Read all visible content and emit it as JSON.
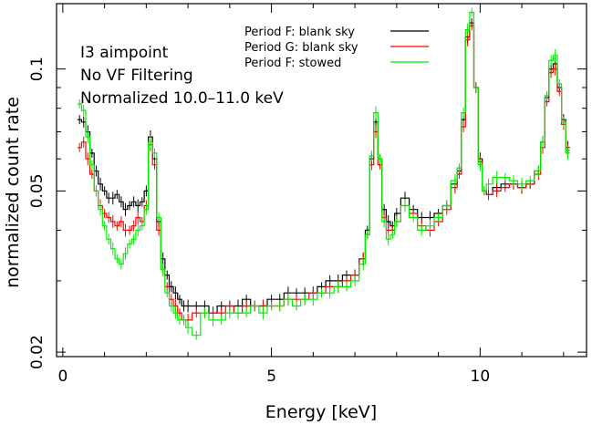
{
  "chart_data": {
    "type": "line",
    "xlabel": "Energy [keV]",
    "ylabel": "normalized count rate",
    "xlim": [
      -0.15,
      12.55
    ],
    "ylim": [
      0.0195,
      0.145
    ],
    "y_scale": "log",
    "x_ticks": [
      {
        "v": 0,
        "label": "0"
      },
      {
        "v": 5,
        "label": "5"
      },
      {
        "v": 10,
        "label": "10"
      }
    ],
    "y_ticks": [
      {
        "v": 0.02,
        "label": "0.02"
      },
      {
        "v": 0.05,
        "label": "0.05"
      },
      {
        "v": 0.1,
        "label": "0.1"
      }
    ],
    "annotations": [
      "I3 aimpoint",
      "No VF Filtering",
      "Normalized 10.0–11.0 keV"
    ],
    "legend_position": "top-center",
    "series": [
      {
        "name": "Period F: blank sky",
        "color": "#000000",
        "x": [
          0.4,
          0.5,
          0.6,
          0.7,
          0.8,
          0.9,
          1.0,
          1.1,
          1.2,
          1.3,
          1.4,
          1.5,
          1.6,
          1.7,
          1.8,
          1.9,
          2.0,
          2.1,
          2.2,
          2.3,
          2.4,
          2.5,
          2.6,
          2.7,
          2.8,
          2.9,
          3.0,
          3.2,
          3.4,
          3.6,
          3.8,
          4.0,
          4.2,
          4.4,
          4.6,
          4.8,
          5.0,
          5.2,
          5.4,
          5.6,
          5.8,
          6.0,
          6.2,
          6.4,
          6.6,
          6.8,
          7.0,
          7.2,
          7.3,
          7.4,
          7.5,
          7.6,
          7.7,
          7.8,
          7.9,
          8.0,
          8.2,
          8.4,
          8.6,
          8.8,
          9.0,
          9.2,
          9.4,
          9.5,
          9.6,
          9.7,
          9.8,
          9.9,
          10.0,
          10.1,
          10.2,
          10.4,
          10.6,
          10.8,
          11.0,
          11.2,
          11.4,
          11.5,
          11.6,
          11.7,
          11.8,
          11.9,
          12.0,
          12.1
        ],
        "values": [
          0.075,
          0.074,
          0.07,
          0.062,
          0.056,
          0.052,
          0.05,
          0.048,
          0.048,
          0.049,
          0.047,
          0.045,
          0.046,
          0.047,
          0.046,
          0.047,
          0.05,
          0.068,
          0.06,
          0.042,
          0.034,
          0.031,
          0.029,
          0.028,
          0.027,
          0.026,
          0.026,
          0.026,
          0.026,
          0.025,
          0.026,
          0.026,
          0.026,
          0.027,
          0.026,
          0.026,
          0.027,
          0.027,
          0.028,
          0.028,
          0.028,
          0.028,
          0.029,
          0.03,
          0.03,
          0.031,
          0.031,
          0.034,
          0.04,
          0.06,
          0.074,
          0.06,
          0.045,
          0.042,
          0.041,
          0.044,
          0.048,
          0.045,
          0.043,
          0.043,
          0.044,
          0.046,
          0.052,
          0.056,
          0.075,
          0.12,
          0.13,
          0.09,
          0.06,
          0.05,
          0.049,
          0.051,
          0.052,
          0.052,
          0.051,
          0.052,
          0.056,
          0.066,
          0.085,
          0.1,
          0.103,
          0.09,
          0.075,
          0.064
        ]
      },
      {
        "name": "Period G: blank sky",
        "color": "#ff0000",
        "x": [
          0.4,
          0.5,
          0.6,
          0.7,
          0.8,
          0.9,
          1.0,
          1.1,
          1.2,
          1.3,
          1.4,
          1.5,
          1.6,
          1.7,
          1.8,
          1.9,
          2.0,
          2.1,
          2.2,
          2.3,
          2.4,
          2.5,
          2.6,
          2.7,
          2.8,
          2.9,
          3.0,
          3.2,
          3.4,
          3.6,
          3.8,
          4.0,
          4.2,
          4.4,
          4.6,
          4.8,
          5.0,
          5.2,
          5.4,
          5.6,
          5.8,
          6.0,
          6.2,
          6.4,
          6.6,
          6.8,
          7.0,
          7.2,
          7.3,
          7.4,
          7.5,
          7.6,
          7.7,
          7.8,
          7.9,
          8.0,
          8.2,
          8.4,
          8.6,
          8.8,
          9.0,
          9.2,
          9.4,
          9.5,
          9.6,
          9.7,
          9.8,
          9.9,
          10.0,
          10.1,
          10.2,
          10.4,
          10.6,
          10.8,
          11.0,
          11.2,
          11.4,
          11.5,
          11.6,
          11.7,
          11.8,
          11.9,
          12.0,
          12.1
        ],
        "values": [
          0.064,
          0.066,
          0.06,
          0.055,
          0.05,
          0.046,
          0.044,
          0.043,
          0.042,
          0.041,
          0.042,
          0.04,
          0.04,
          0.041,
          0.043,
          0.042,
          0.046,
          0.065,
          0.058,
          0.04,
          0.032,
          0.029,
          0.027,
          0.026,
          0.025,
          0.024,
          0.024,
          0.025,
          0.025,
          0.025,
          0.025,
          0.026,
          0.025,
          0.026,
          0.026,
          0.026,
          0.026,
          0.026,
          0.027,
          0.027,
          0.027,
          0.028,
          0.028,
          0.029,
          0.029,
          0.03,
          0.031,
          0.034,
          0.039,
          0.058,
          0.07,
          0.058,
          0.043,
          0.04,
          0.04,
          0.042,
          0.046,
          0.044,
          0.041,
          0.04,
          0.042,
          0.045,
          0.051,
          0.055,
          0.072,
          0.118,
          0.128,
          0.09,
          0.059,
          0.05,
          0.049,
          0.05,
          0.051,
          0.052,
          0.051,
          0.052,
          0.055,
          0.064,
          0.083,
          0.098,
          0.1,
          0.088,
          0.073,
          0.063
        ]
      },
      {
        "name": "Period F: stowed",
        "color": "#00ee00",
        "x": [
          0.4,
          0.5,
          0.6,
          0.7,
          0.8,
          0.9,
          1.0,
          1.1,
          1.2,
          1.3,
          1.4,
          1.5,
          1.6,
          1.7,
          1.8,
          1.9,
          2.0,
          2.1,
          2.2,
          2.3,
          2.4,
          2.5,
          2.6,
          2.7,
          2.8,
          2.9,
          3.0,
          3.2,
          3.4,
          3.6,
          3.8,
          4.0,
          4.2,
          4.4,
          4.6,
          4.8,
          5.0,
          5.2,
          5.4,
          5.6,
          5.8,
          6.0,
          6.2,
          6.4,
          6.6,
          6.8,
          7.0,
          7.2,
          7.3,
          7.4,
          7.5,
          7.6,
          7.7,
          7.8,
          7.9,
          8.0,
          8.2,
          8.4,
          8.6,
          8.8,
          9.0,
          9.2,
          9.4,
          9.5,
          9.6,
          9.7,
          9.8,
          9.9,
          10.0,
          10.1,
          10.2,
          10.4,
          10.6,
          10.8,
          11.0,
          11.2,
          11.4,
          11.5,
          11.6,
          11.7,
          11.8,
          11.9,
          12.0,
          12.1
        ],
        "values": [
          0.082,
          0.079,
          0.068,
          0.058,
          0.05,
          0.045,
          0.041,
          0.038,
          0.036,
          0.034,
          0.033,
          0.035,
          0.037,
          0.038,
          0.04,
          0.041,
          0.045,
          0.066,
          0.062,
          0.043,
          0.032,
          0.028,
          0.026,
          0.025,
          0.024,
          0.024,
          0.023,
          0.022,
          0.025,
          0.024,
          0.024,
          0.025,
          0.025,
          0.025,
          0.026,
          0.025,
          0.026,
          0.026,
          0.027,
          0.026,
          0.027,
          0.027,
          0.028,
          0.028,
          0.029,
          0.029,
          0.03,
          0.033,
          0.039,
          0.061,
          0.078,
          0.06,
          0.042,
          0.038,
          0.039,
          0.042,
          0.046,
          0.043,
          0.04,
          0.041,
          0.043,
          0.046,
          0.053,
          0.057,
          0.078,
          0.125,
          0.138,
          0.09,
          0.058,
          0.05,
          0.052,
          0.054,
          0.054,
          0.053,
          0.052,
          0.053,
          0.056,
          0.066,
          0.086,
          0.105,
          0.108,
          0.092,
          0.074,
          0.062
        ]
      }
    ]
  }
}
